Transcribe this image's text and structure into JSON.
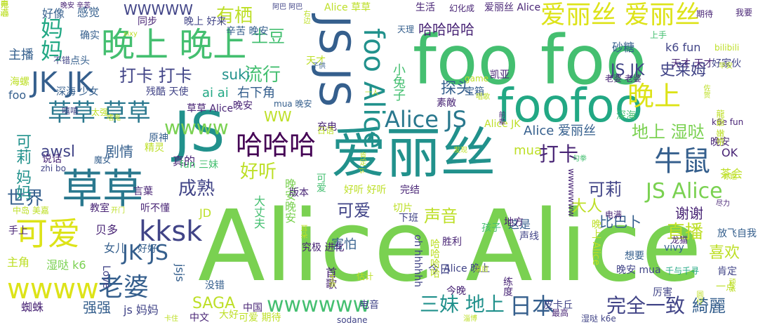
{
  "cloud": {
    "palette": {
      "yellow": "#dde318",
      "lime": "#bddf26",
      "lightgreen": "#7ad151",
      "green": "#44bf70",
      "teal": "#22a884",
      "sea": "#21918c",
      "steel": "#2a788e",
      "slate": "#355f8d",
      "indigo": "#414487",
      "purple": "#482475",
      "dark": "#440154"
    },
    "words": [
      {
        "text": "Alice Alice",
        "color": "lightgreen"
      },
      {
        "text": "foo foo",
        "color": "green"
      },
      {
        "text": "爱丽丝",
        "color": "sea"
      },
      {
        "text": "foofoo",
        "color": "teal"
      },
      {
        "text": "JS",
        "color": "sea"
      },
      {
        "text": "JS JS",
        "color": "slate"
      },
      {
        "text": "草草",
        "color": "steel"
      },
      {
        "text": "晚上 晚上",
        "color": "green"
      },
      {
        "text": "爱丽丝 爱丽丝",
        "color": "yellow"
      },
      {
        "text": "可爱",
        "color": "yellow"
      },
      {
        "text": "foo Alice",
        "color": "sea"
      },
      {
        "text": "JK JK",
        "color": "slate"
      },
      {
        "text": "草草 草草",
        "color": "steel"
      },
      {
        "text": "Alice JS",
        "color": "steel"
      },
      {
        "text": "哈哈哈",
        "color": "dark"
      },
      {
        "text": "晚上",
        "color": "yellow"
      },
      {
        "text": "牛鼠",
        "color": "slate"
      },
      {
        "text": "kksk",
        "color": "indigo"
      },
      {
        "text": "wwww",
        "color": "yellow"
      },
      {
        "text": "老婆",
        "color": "slate"
      },
      {
        "text": "JS Alice",
        "color": "lightgreen"
      },
      {
        "text": "妈妈",
        "color": "teal"
      },
      {
        "text": "wwwwww",
        "color": "green"
      },
      {
        "text": "日本",
        "color": "slate"
      },
      {
        "text": "三妹 地上",
        "color": "sea"
      },
      {
        "text": "完全一致",
        "color": "indigo"
      },
      {
        "text": "綺麗",
        "color": "slate"
      },
      {
        "text": "直播",
        "color": "lime"
      },
      {
        "text": "可莉",
        "color": "indigo"
      },
      {
        "text": "JK JS",
        "color": "slate"
      },
      {
        "text": "世界",
        "color": "slate"
      },
      {
        "text": "成熟",
        "color": "indigo"
      },
      {
        "text": "好听",
        "color": "lime"
      },
      {
        "text": "打卡",
        "color": "purple"
      },
      {
        "text": "地上 湿哒",
        "color": "lightgreen"
      },
      {
        "text": "有栖",
        "color": "lime"
      },
      {
        "text": "土豆",
        "color": "green"
      },
      {
        "text": "流行",
        "color": "green"
      },
      {
        "text": "打卡 打卡",
        "color": "indigo"
      },
      {
        "text": "JS JK",
        "color": "indigo"
      },
      {
        "text": "史莱姆",
        "color": "indigo"
      },
      {
        "text": "哈哈哈哈",
        "color": "purple"
      },
      {
        "text": "声音",
        "color": "lime"
      },
      {
        "text": "可爱",
        "color": "indigo"
      },
      {
        "text": "大人",
        "color": "lime"
      },
      {
        "text": "喜欢",
        "color": "lime"
      },
      {
        "text": "谢谢",
        "color": "purple"
      },
      {
        "text": "比巴卜",
        "color": "slate"
      },
      {
        "text": "Alice 爱丽丝",
        "color": "slate"
      },
      {
        "text": "wwww",
        "color": "lightgreen"
      },
      {
        "text": "可莉 妈妈",
        "color": "sea"
      },
      {
        "text": "强强",
        "color": "slate"
      },
      {
        "text": "awsl",
        "color": "indigo"
      },
      {
        "text": "剧情",
        "color": "slate"
      },
      {
        "text": "WW",
        "color": "lime"
      },
      {
        "text": "suki",
        "color": "sea"
      },
      {
        "text": "ai ai",
        "color": "teal"
      },
      {
        "text": "右下角",
        "color": "slate"
      },
      {
        "text": "探头",
        "color": "slate"
      },
      {
        "text": "小兔子",
        "color": "green"
      },
      {
        "text": "WWWWW",
        "color": "indigo"
      },
      {
        "text": "感觉",
        "color": "slate"
      },
      {
        "text": "砂糖",
        "color": "slate"
      },
      {
        "text": "k6 fun",
        "color": "indigo"
      },
      {
        "text": "主播",
        "color": "slate"
      },
      {
        "text": "好像",
        "color": "slate"
      },
      {
        "text": "晚安晚安",
        "color": "lightgreen"
      },
      {
        "text": "害怕",
        "color": "slate"
      },
      {
        "text": "真的",
        "color": "purple"
      },
      {
        "text": "mua",
        "color": "lime"
      },
      {
        "text": "OK",
        "color": "purple"
      },
      {
        "text": "茶会",
        "color": "lime"
      },
      {
        "text": "SAGA",
        "color": "lime"
      },
      {
        "text": "蜘蛛",
        "color": "purple"
      },
      {
        "text": "女儿",
        "color": "slate"
      },
      {
        "text": "贝多",
        "color": "purple"
      },
      {
        "text": "湿哒 k6",
        "color": "lightgreen"
      },
      {
        "text": "主角",
        "color": "lime"
      },
      {
        "text": "这是",
        "color": "slate"
      },
      {
        "text": "大丈夫",
        "color": "green"
      },
      {
        "text": "JD",
        "color": "lime"
      },
      {
        "text": "今日",
        "color": "indigo"
      },
      {
        "text": "首歌",
        "color": "purple"
      },
      {
        "text": "jsjs",
        "color": "slate"
      },
      {
        "text": "fun 三妹",
        "color": "green"
      },
      {
        "text": "Alice 草草",
        "color": "lime"
      },
      {
        "text": "哈哈哈哈",
        "color": "lime"
      },
      {
        "text": "可爱",
        "color": "green"
      },
      {
        "text": "Alice JK",
        "color": "lime"
      },
      {
        "text": "Alice 晚上",
        "color": "indigo"
      },
      {
        "text": "晚上 Alice",
        "color": "lime"
      },
      {
        "text": "声线",
        "color": "indigo"
      },
      {
        "text": "胜利",
        "color": "purple"
      },
      {
        "text": "下班",
        "color": "indigo"
      },
      {
        "text": "想要",
        "color": "slate"
      },
      {
        "text": "肯定",
        "color": "indigo"
      },
      {
        "text": "晚安 mua",
        "color": "indigo"
      },
      {
        "text": "今晚",
        "color": "purple"
      },
      {
        "text": "一点",
        "color": "lime"
      },
      {
        "text": "原神",
        "color": "slate"
      },
      {
        "text": "精灵",
        "color": "lime"
      },
      {
        "text": "言葉",
        "color": "purple"
      },
      {
        "text": "听不懂",
        "color": "purple"
      },
      {
        "text": "好好",
        "color": "slate"
      },
      {
        "text": "教室",
        "color": "purple"
      },
      {
        "text": "说话",
        "color": "purple"
      },
      {
        "text": "手上",
        "color": "purple"
      },
      {
        "text": "确实",
        "color": "slate"
      },
      {
        "text": "同步",
        "color": "purple"
      },
      {
        "text": "晚上 好来",
        "color": "indigo"
      },
      {
        "text": "辛苦 晚安",
        "color": "slate"
      },
      {
        "text": "生活",
        "color": "purple"
      },
      {
        "text": "爱丽丝 Alice",
        "color": "purple"
      },
      {
        "text": "我要",
        "color": "purple"
      },
      {
        "text": "幻化成",
        "color": "purple"
      },
      {
        "text": "期待",
        "color": "purple"
      },
      {
        "text": "上手",
        "color": "green"
      },
      {
        "text": "天理",
        "color": "slate"
      },
      {
        "text": "天才",
        "color": "lime"
      },
      {
        "text": "凯亚",
        "color": "purple"
      },
      {
        "text": "bilibili",
        "color": "lime"
      },
      {
        "text": "好家伙",
        "color": "indigo"
      },
      {
        "text": "天才 天才",
        "color": "purple"
      },
      {
        "text": "老婆 老婆",
        "color": "purple"
      },
      {
        "text": "game",
        "color": "lime"
      },
      {
        "text": "宝箱",
        "color": "slate"
      },
      {
        "text": "素敵",
        "color": "purple"
      },
      {
        "text": "深海",
        "color": "green"
      },
      {
        "text": "晚安",
        "color": "purple"
      },
      {
        "text": "深海 少女",
        "color": "slate"
      },
      {
        "text": "残酷 天使",
        "color": "indigo"
      },
      {
        "text": "foo",
        "color": "slate"
      },
      {
        "text": "海螺",
        "color": "lime"
      },
      {
        "text": "草草 Alice",
        "color": "purple"
      },
      {
        "text": "mua 晚安",
        "color": "slate"
      },
      {
        "text": "充电",
        "color": "purple"
      },
      {
        "text": "日语",
        "color": "lime"
      },
      {
        "text": "k6e fun",
        "color": "purple"
      },
      {
        "text": "晚安",
        "color": "purple"
      },
      {
        "text": "点头",
        "color": "slate"
      },
      {
        "text": "不错",
        "color": "indigo"
      },
      {
        "text": "嘻嘻",
        "color": "indigo"
      },
      {
        "text": "太强",
        "color": "lime"
      },
      {
        "text": "魔女",
        "color": "slate"
      },
      {
        "text": "zhi bo",
        "color": "indigo"
      },
      {
        "text": "版本",
        "color": "purple"
      },
      {
        "text": "好听 好听",
        "color": "lime"
      },
      {
        "text": "完结",
        "color": "purple"
      },
      {
        "text": "切片",
        "color": "lime"
      },
      {
        "text": "地方",
        "color": "purple"
      },
      {
        "text": "电满",
        "color": "purple"
      },
      {
        "text": "龙猫",
        "color": "purple"
      },
      {
        "text": "放飞自我",
        "color": "slate"
      },
      {
        "text": "孩子",
        "color": "green"
      },
      {
        "text": "vivy",
        "color": "slate"
      },
      {
        "text": "oh hhhhhh",
        "color": "indigo"
      },
      {
        "text": "究极 进化",
        "color": "purple"
      },
      {
        "text": "Love",
        "color": "indigo"
      },
      {
        "text": "没错",
        "color": "slate"
      },
      {
        "text": "估计",
        "color": "lime"
      },
      {
        "text": "练度",
        "color": "purple"
      },
      {
        "text": "厉害",
        "color": "indigo"
      },
      {
        "text": "千与千寻",
        "color": "teal"
      },
      {
        "text": "电音",
        "color": "indigo"
      },
      {
        "text": "皮卡丘",
        "color": "indigo"
      },
      {
        "text": "中国",
        "color": "purple"
      },
      {
        "text": "js 妈妈",
        "color": "indigo"
      },
      {
        "text": "大好",
        "color": "lime"
      },
      {
        "text": "可爱 期待",
        "color": "lime"
      },
      {
        "text": "中文",
        "color": "purple"
      },
      {
        "text": "卡住",
        "color": "lime"
      },
      {
        "text": "sodane",
        "color": "indigo"
      },
      {
        "text": "淄博",
        "color": "lime"
      },
      {
        "text": "湿哒 k6e",
        "color": "indigo"
      },
      {
        "text": "最高",
        "color": "purple"
      },
      {
        "text": "开门",
        "color": "lime"
      },
      {
        "text": "中岛 美嘉",
        "color": "lime"
      },
      {
        "text": "wwwwwww",
        "color": "purple"
      },
      {
        "text": "泪目",
        "color": "lime"
      },
      {
        "text": "勾拳",
        "color": "green"
      },
      {
        "text": "发现",
        "color": "lime"
      },
      {
        "text": "前辈",
        "color": "purple"
      },
      {
        "text": "子供",
        "color": "slate"
      },
      {
        "text": "一人",
        "color": "lime"
      },
      {
        "text": "唱歌",
        "color": "lime"
      },
      {
        "text": "阿巴 阿巴",
        "color": "indigo"
      },
      {
        "text": "晚安 辛苦",
        "color": "purple"
      },
      {
        "text": "sixy",
        "color": "lime"
      },
      {
        "text": "龍爺 嫩带",
        "color": "lime"
      },
      {
        "text": "早安",
        "color": "lime"
      },
      {
        "text": "顽张",
        "color": "lime"
      },
      {
        "text": "右边",
        "color": "lime"
      },
      {
        "text": "耳朵",
        "color": "lime"
      },
      {
        "text": "肯定 js",
        "color": "lime"
      },
      {
        "text": "尽力",
        "color": "purple"
      },
      {
        "text": "生命",
        "color": "lime"
      },
      {
        "text": "圆仔",
        "color": "lime"
      },
      {
        "text": "标题",
        "color": "lime"
      },
      {
        "text": "嗜鬼",
        "color": "lime"
      },
      {
        "text": "佐贺",
        "color": "lime"
      },
      {
        "text": "开心",
        "color": "lime"
      },
      {
        "text": "电满",
        "color": "lime"
      }
    ]
  }
}
